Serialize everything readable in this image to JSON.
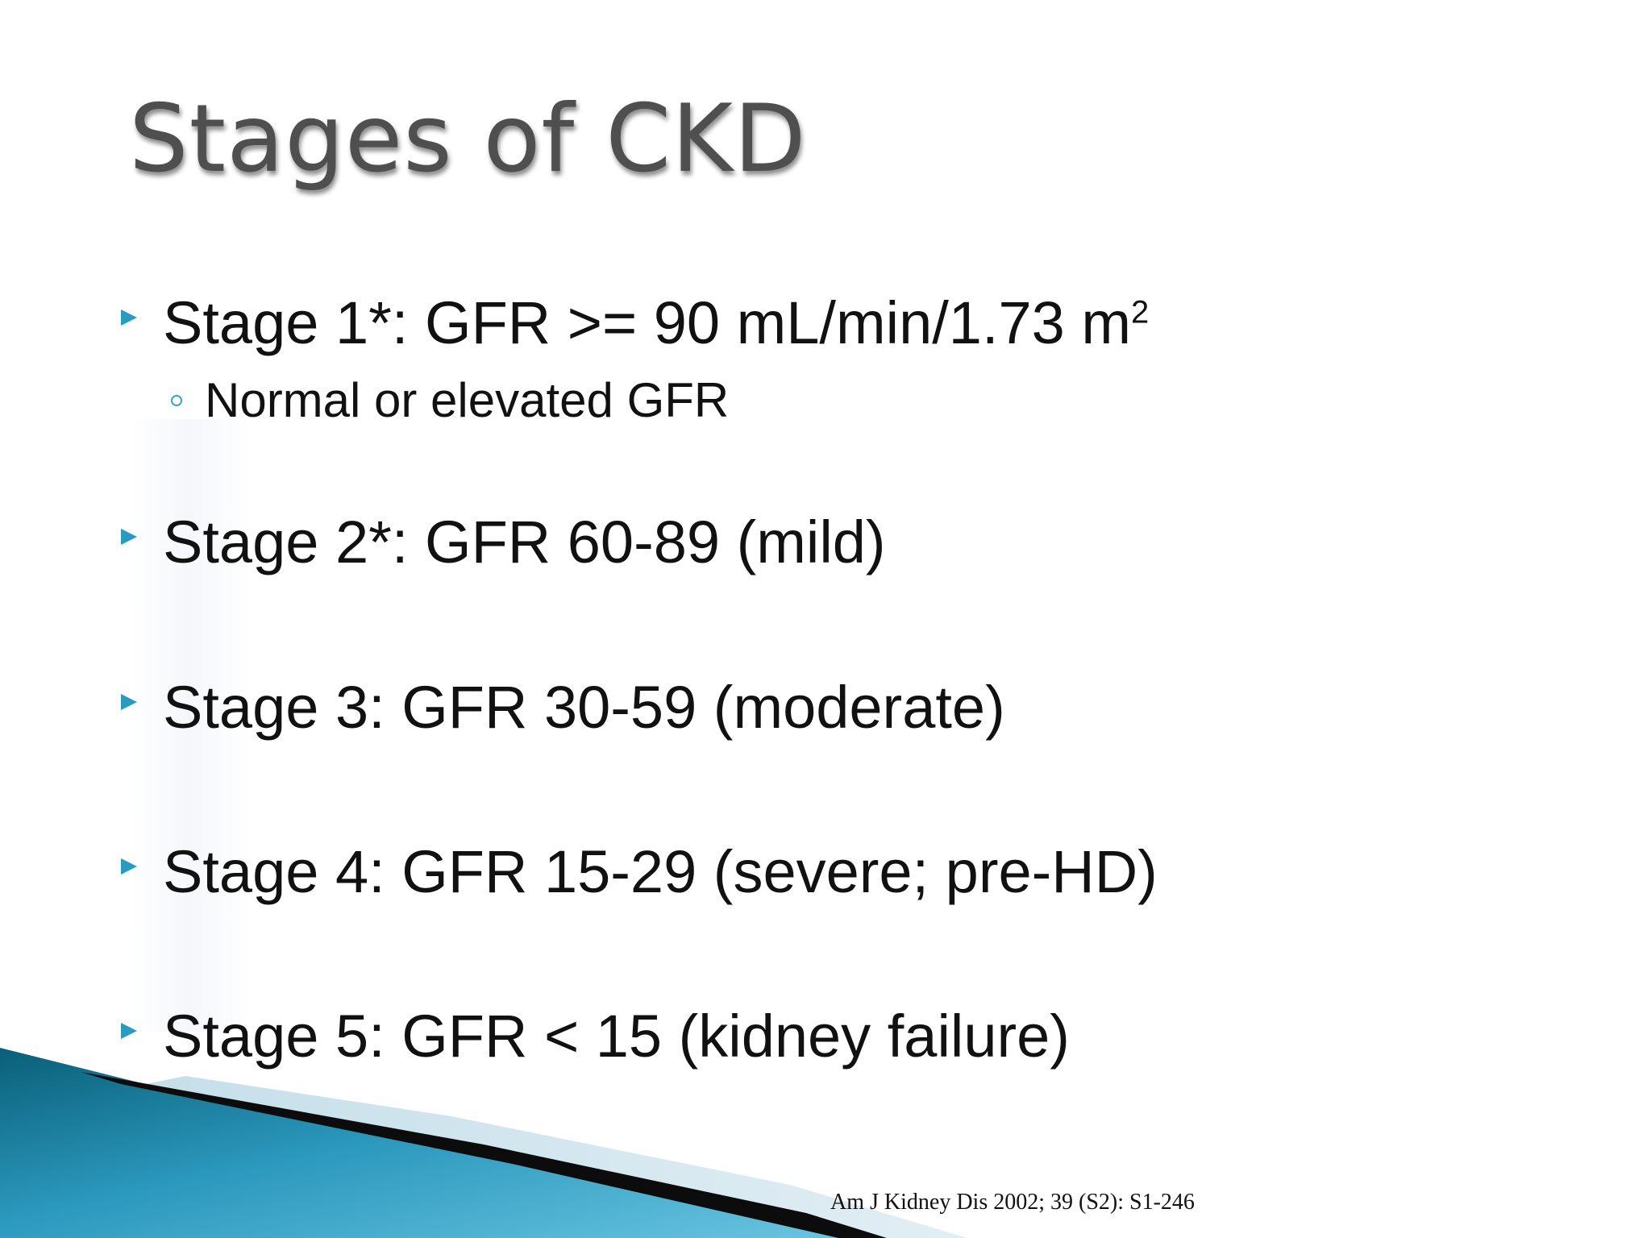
{
  "slide": {
    "title": "Stages of CKD",
    "bullets": [
      {
        "text": "Stage 1*: GFR >= 90 mL/min/1.73 m",
        "sup": "2"
      },
      {
        "text": "Stage 2*: GFR 60-89 (mild)"
      },
      {
        "text": "Stage 3: GFR 30-59 (moderate)"
      },
      {
        "text": "Stage 4: GFR 15-29 (severe; pre-HD)"
      },
      {
        "text": "Stage 5: GFR < 15 (kidney failure)"
      }
    ],
    "sub_bullet": "Normal or elevated GFR",
    "citation": "Am J Kidney Dis 2002; 39 (S2): S1-246"
  },
  "colors": {
    "bullet_marker": "#2a9bc0",
    "title_text": "#4f4f4f",
    "body_text": "#111111",
    "wave_dark": "#0d6b86",
    "wave_light": "#5fc0de"
  }
}
